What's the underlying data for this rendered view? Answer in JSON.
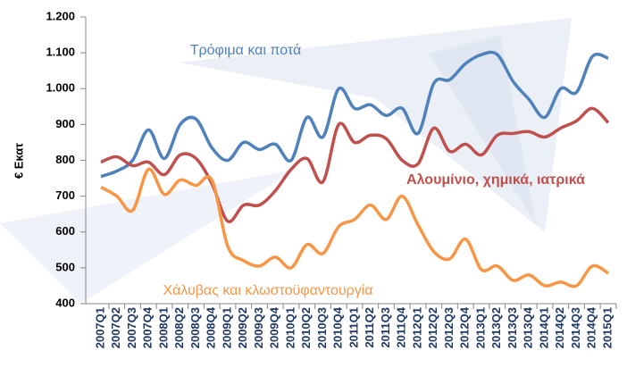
{
  "chart_data": {
    "type": "line",
    "y_label": "€ Εκατ",
    "categories": [
      "2007Q1",
      "2007Q2",
      "2007Q3",
      "2007Q4",
      "2008Q1",
      "2008Q2",
      "2008Q3",
      "2008Q4",
      "2009Q1",
      "2009Q2",
      "2009Q3",
      "2009Q4",
      "2010Q1",
      "2010Q2",
      "2010Q3",
      "2010Q4",
      "2011Q1",
      "2011Q2",
      "2011Q3",
      "2011Q4",
      "2012Q1",
      "2012Q2",
      "2012Q3",
      "2012Q4",
      "2013Q1",
      "2013Q2",
      "2013Q3",
      "2013Q4",
      "2014Q1",
      "2014Q2",
      "2014Q3",
      "2014Q4",
      "2015Q1"
    ],
    "series": [
      {
        "name": "Τρόφιμα και  ποτά",
        "color": "#4f81bd",
        "values": [
          755,
          770,
          800,
          885,
          805,
          900,
          915,
          835,
          800,
          850,
          830,
          845,
          800,
          920,
          865,
          1000,
          945,
          955,
          925,
          945,
          875,
          1015,
          1025,
          1070,
          1095,
          1095,
          1020,
          970,
          920,
          1000,
          990,
          1090,
          1085
        ]
      },
      {
        "name": "Αλουμίνιο, χημικά, ιατρικά",
        "color": "#c0504d",
        "values": [
          795,
          810,
          785,
          795,
          760,
          815,
          805,
          735,
          630,
          675,
          675,
          715,
          775,
          805,
          740,
          900,
          850,
          870,
          860,
          800,
          790,
          890,
          825,
          845,
          815,
          870,
          875,
          880,
          865,
          890,
          910,
          945,
          905
        ]
      },
      {
        "name": "Χάλυβας και κλωστοϋφαντουργία",
        "color": "#f79646",
        "values": [
          725,
          700,
          660,
          775,
          705,
          745,
          730,
          745,
          560,
          520,
          505,
          530,
          500,
          565,
          540,
          615,
          635,
          675,
          635,
          700,
          620,
          545,
          525,
          580,
          495,
          505,
          465,
          480,
          450,
          460,
          450,
          505,
          485
        ]
      }
    ],
    "ylim": [
      400,
      1200
    ],
    "yticks": [
      400,
      500,
      600,
      700,
      800,
      900,
      {
        "value": 1000,
        "label": "1.000"
      },
      {
        "value": 1100,
        "label": "1.100"
      },
      {
        "value": 1200,
        "label": "1.200"
      }
    ],
    "grid": false
  }
}
